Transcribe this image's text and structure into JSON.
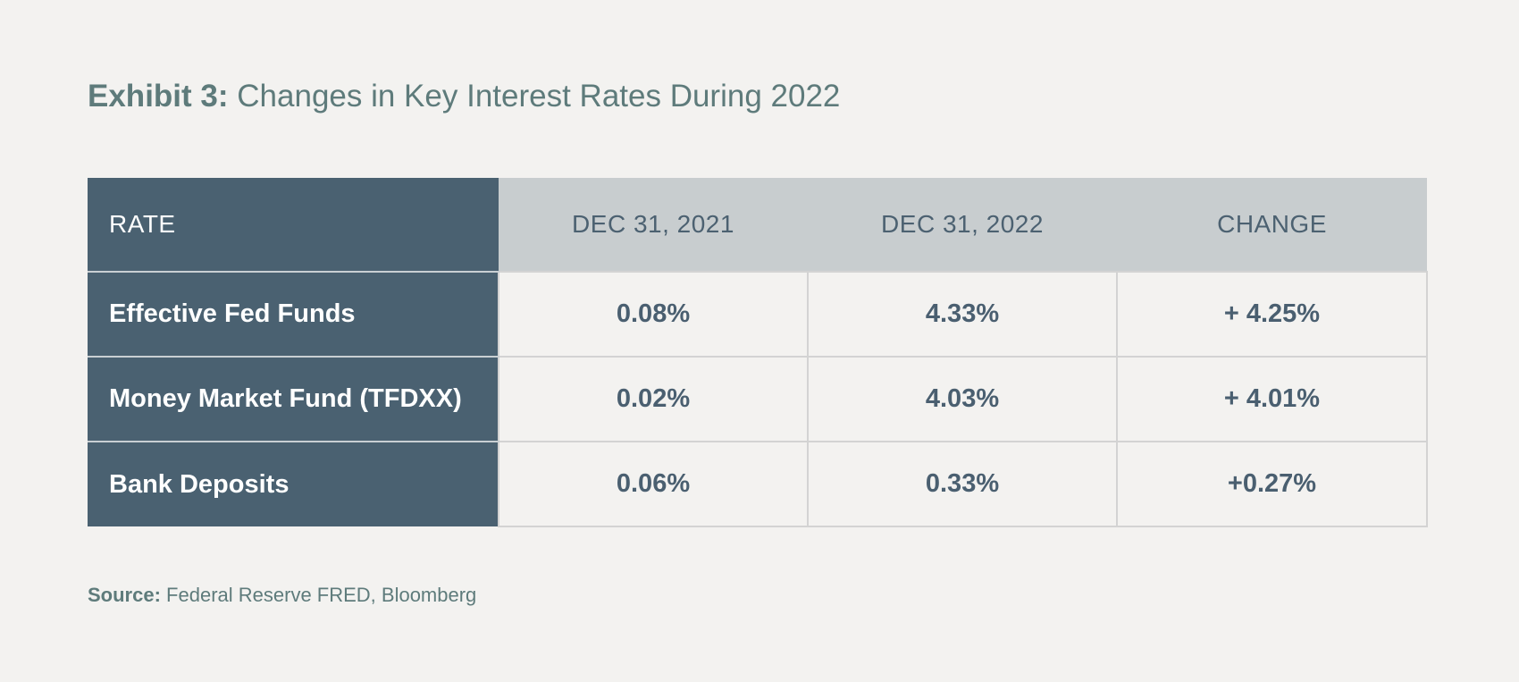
{
  "title": {
    "prefix": "Exhibit 3:",
    "text": "Changes in Key Interest Rates During 2022"
  },
  "table": {
    "headers": [
      "RATE",
      "DEC 31, 2021",
      "DEC 31, 2022",
      "CHANGE"
    ],
    "rows": [
      {
        "label": "Effective Fed Funds",
        "dec_2021": "0.08%",
        "dec_2022": "4.33%",
        "change": "+ 4.25%"
      },
      {
        "label": "Money Market Fund (TFDXX)",
        "dec_2021": "0.02%",
        "dec_2022": "4.03%",
        "change": "+ 4.01%"
      },
      {
        "label": "Bank Deposits",
        "dec_2021": "0.06%",
        "dec_2022": "0.33%",
        "change": "+0.27%"
      }
    ]
  },
  "source": {
    "label": "Source:",
    "text": "Federal Reserve FRED, Bloomberg"
  },
  "colors": {
    "background": "#f3f2f0",
    "header_dark": "#4a6171",
    "header_light": "#c8cdcf",
    "title": "#5e7b7b",
    "cell_text": "#4a5f70"
  }
}
